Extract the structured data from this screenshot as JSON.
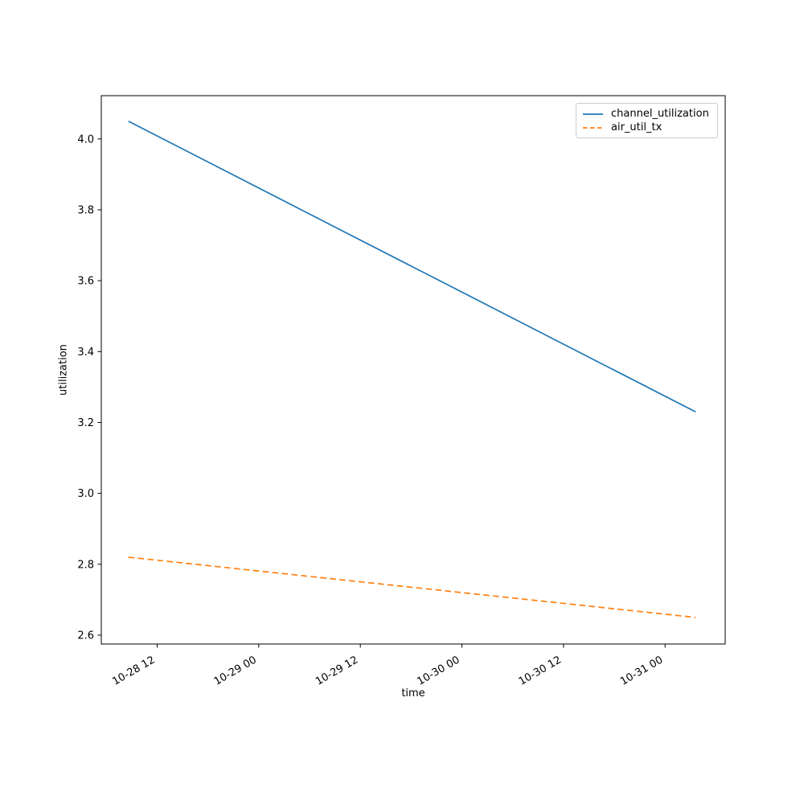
{
  "chart_data": {
    "type": "line",
    "title": "",
    "xlabel": "time",
    "ylabel": "utilization",
    "grid": false,
    "x_axis_note": "time ticks formatted MM-DD HH, rotated 30 degrees; hours measured from 10-28 00",
    "x_ticks": [
      {
        "hour": 12,
        "label": "10-28 12"
      },
      {
        "hour": 24,
        "label": "10-29 00"
      },
      {
        "hour": 36,
        "label": "10-29 12"
      },
      {
        "hour": 48,
        "label": "10-30 00"
      },
      {
        "hour": 60,
        "label": "10-30 12"
      },
      {
        "hour": 72,
        "label": "10-31 00"
      }
    ],
    "y_ticks": [
      {
        "value": 2.6,
        "label": "2.6"
      },
      {
        "value": 2.8,
        "label": "2.8"
      },
      {
        "value": 3.0,
        "label": "3.0"
      },
      {
        "value": 3.2,
        "label": "3.2"
      },
      {
        "value": 3.4,
        "label": "3.4"
      },
      {
        "value": 3.6,
        "label": "3.6"
      },
      {
        "value": 3.8,
        "label": "3.8"
      },
      {
        "value": 4.0,
        "label": "4.0"
      }
    ],
    "xlim": [
      5.4,
      79.1
    ],
    "ylim": [
      2.575,
      4.122
    ],
    "legend": {
      "position": "upper right",
      "entries": [
        "channel_utilization",
        "air_util_tx"
      ]
    },
    "series": [
      {
        "name": "channel_utilization",
        "color": "#1f77b4",
        "line_style": "solid",
        "x": [
          8.6,
          75.6
        ],
        "y": [
          4.05,
          3.23
        ]
      },
      {
        "name": "air_util_tx",
        "color": "#ff7f0e",
        "line_style": "dashed",
        "x": [
          8.6,
          75.6
        ],
        "y": [
          2.82,
          2.65
        ]
      }
    ],
    "axis_color": "#000000",
    "tick_label_color": "#000000"
  }
}
